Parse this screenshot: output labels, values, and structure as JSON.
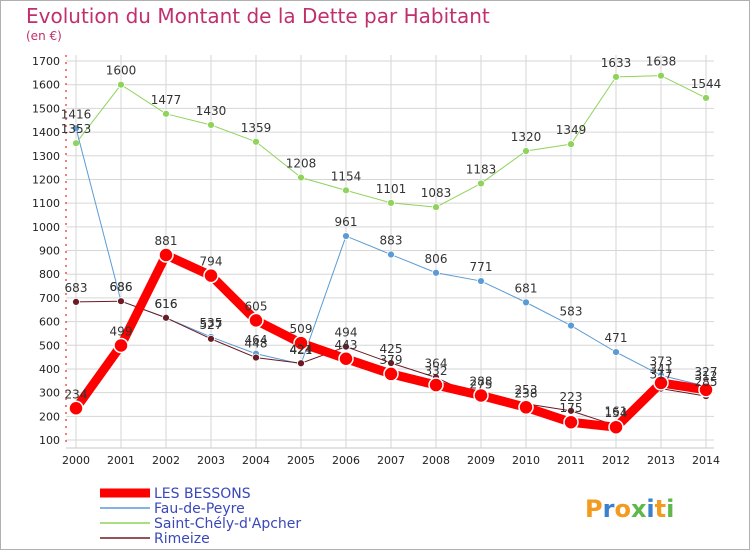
{
  "chart_data": {
    "type": "line",
    "title": "Evolution du Montant de la Dette par Habitant",
    "subtitle": "(en €)",
    "x": [
      "2000",
      "2001",
      "2002",
      "2003",
      "2004",
      "2005",
      "2006",
      "2007",
      "2008",
      "2009",
      "2010",
      "2011",
      "2012",
      "2013",
      "2014"
    ],
    "yticks": [
      100,
      200,
      300,
      400,
      500,
      600,
      700,
      800,
      900,
      1000,
      1100,
      1200,
      1300,
      1400,
      1500,
      1600,
      1700
    ],
    "ylim": [
      100,
      1700
    ],
    "grid": true,
    "legend_position": "bottom-left",
    "series": [
      {
        "name": "Saint-Chély-d'Apcher",
        "color": "#8fd35a",
        "stroke_width": 1,
        "values": [
          1353,
          1600,
          1477,
          1430,
          1359,
          1208,
          1154,
          1101,
          1083,
          1183,
          1320,
          1349,
          1633,
          1638,
          1544
        ]
      },
      {
        "name": "Fau-de-Peyre",
        "color": "#5b9bd5",
        "stroke_width": 1,
        "values": [
          1416,
          686,
          616,
          535,
          464,
          421,
          961,
          883,
          806,
          771,
          681,
          583,
          471,
          373,
          327
        ]
      },
      {
        "name": "Rimeize",
        "color": "#6b1b24",
        "stroke_width": 1,
        "values": [
          683,
          686,
          616,
          527,
          448,
          424,
          494,
          425,
          364,
          275,
          253,
          223,
          161,
          317,
          285
        ]
      },
      {
        "name": "LES BESSONS",
        "color": "#ff0000",
        "stroke_width": 9,
        "values": [
          234,
          499,
          881,
          794,
          605,
          509,
          443,
          379,
          332,
          288,
          238,
          175,
          154,
          341,
          312
        ]
      }
    ],
    "brand": "Proxiti"
  }
}
